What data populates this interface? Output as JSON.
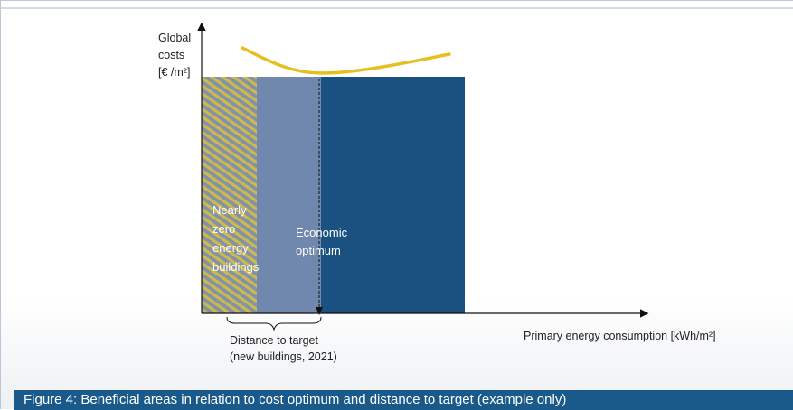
{
  "figure": {
    "caption": "Figure 4: Beneficial areas in relation to cost optimum and distance to target (example only)",
    "y_axis_label": [
      "Global",
      "costs",
      "[€ /m²]"
    ],
    "x_axis_label": "Primary energy consumption [kWh/m²]",
    "regions": [
      {
        "label": [
          "Nearly",
          "zero",
          "energy",
          "buildings"
        ],
        "color": "#c9b54e"
      },
      {
        "label": [
          "Economic",
          "optimum"
        ],
        "color": "#7088ad"
      },
      {
        "label": [],
        "color": "#1a5181"
      }
    ],
    "brace_label": [
      "Distance to target",
      "(new buildings, 2021)"
    ],
    "curve_color": "#e7bf20",
    "caption_bar_color": "#1a5a8a"
  }
}
